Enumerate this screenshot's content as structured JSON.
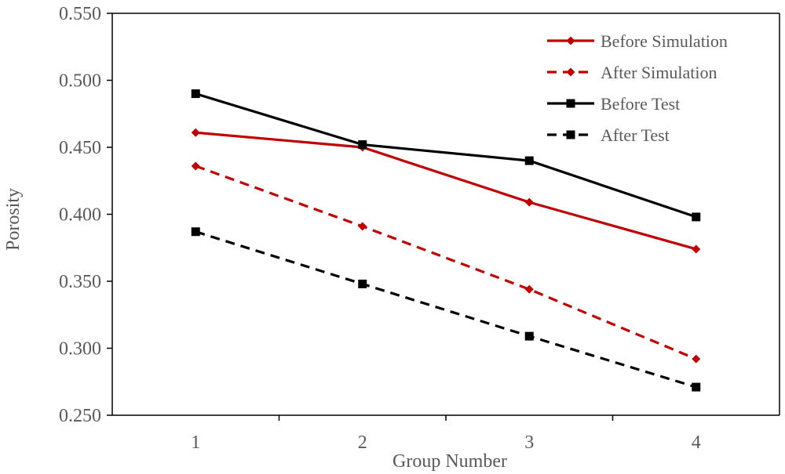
{
  "chart_data": {
    "type": "line",
    "title": "",
    "xlabel": "Group Number",
    "ylabel": "Porosity",
    "categories": [
      "1",
      "2",
      "3",
      "4"
    ],
    "ylim": [
      0.25,
      0.55
    ],
    "yticks": [
      "0.250",
      "0.300",
      "0.350",
      "0.400",
      "0.450",
      "0.500",
      "0.550"
    ],
    "grid": false,
    "legend_position": "top-right",
    "series": [
      {
        "name": "Before Simulation",
        "values": [
          0.461,
          0.45,
          0.409,
          0.374
        ],
        "color": "#c00000",
        "dash": "solid",
        "marker": "diamond"
      },
      {
        "name": "After Simulation",
        "values": [
          0.436,
          0.391,
          0.344,
          0.292
        ],
        "color": "#c00000",
        "dash": "dashed",
        "marker": "diamond"
      },
      {
        "name": "Before Test",
        "values": [
          0.49,
          0.452,
          0.44,
          0.398
        ],
        "color": "#000000",
        "dash": "solid",
        "marker": "square"
      },
      {
        "name": "After Test",
        "values": [
          0.387,
          0.348,
          0.309,
          0.271
        ],
        "color": "#000000",
        "dash": "dashed",
        "marker": "square"
      }
    ]
  }
}
